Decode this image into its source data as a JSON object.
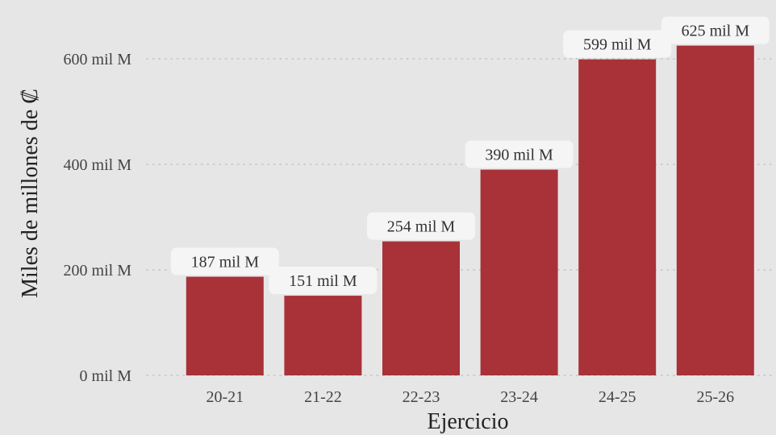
{
  "chart_data": {
    "type": "bar",
    "categories": [
      "20-21",
      "21-22",
      "22-23",
      "23-24",
      "24-25",
      "25-26"
    ],
    "values": [
      187,
      151,
      254,
      390,
      599,
      625
    ],
    "data_labels": [
      "187 mil M",
      "151 mil M",
      "254 mil M",
      "390 mil M",
      "599 mil M",
      "625 mil M"
    ],
    "xlabel": "Ejercicio",
    "ylabel": "Miles de millones de ₡",
    "yticks": [
      0,
      200,
      400,
      600
    ],
    "ytick_labels": [
      "0 mil M",
      "200 mil M",
      "400 mil M",
      "600 mil M"
    ],
    "ylim": [
      0,
      650
    ],
    "grid": "horizontal dotted",
    "legend": "none",
    "colors": {
      "bar": "#a83238",
      "background": "#e6e6e6",
      "label_box": "#f5f5f5",
      "grid": "#c4c4c4"
    }
  }
}
